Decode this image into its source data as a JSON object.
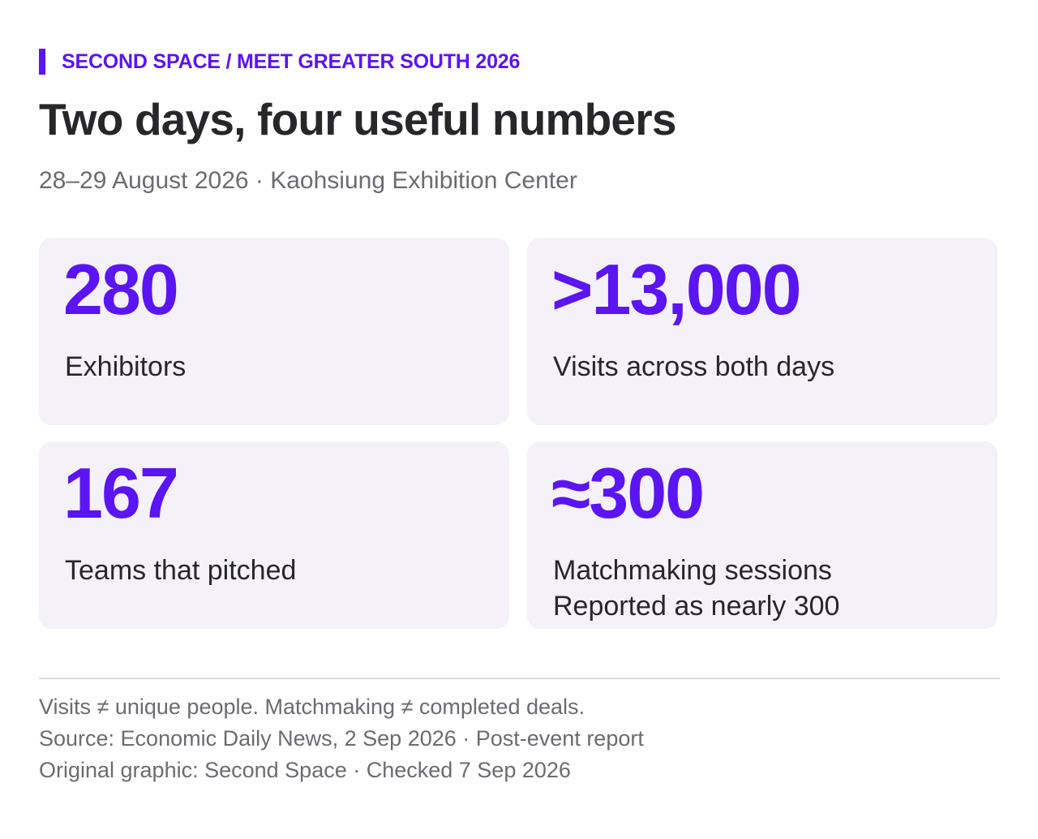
{
  "header": {
    "kicker": "SECOND SPACE / MEET GREATER SOUTH 2026",
    "title": "Two days, four useful numbers",
    "subtitle": "28–29 August 2026 · Kaohsiung Exhibition Center"
  },
  "stats": [
    {
      "value": "280",
      "label": "Exhibitors"
    },
    {
      "value": ">13,000",
      "label": "Visits across both days"
    },
    {
      "value": "167",
      "label": "Teams that pitched"
    },
    {
      "value": "≈300",
      "label": "Matchmaking sessions",
      "note": "Reported as nearly 300"
    }
  ],
  "footer": {
    "caveat": "Visits ≠ unique people. Matchmaking ≠ completed deals.",
    "source": "Source: Economic Daily News, 2 Sep 2026 · Post-event report",
    "credit": "Original graphic: Second Space · Checked 7 Sep 2026"
  },
  "colors": {
    "accent": "#5b14f2",
    "card_background": "#f4f2f8",
    "title_text": "#27272a",
    "muted_text": "#6b6b72"
  }
}
